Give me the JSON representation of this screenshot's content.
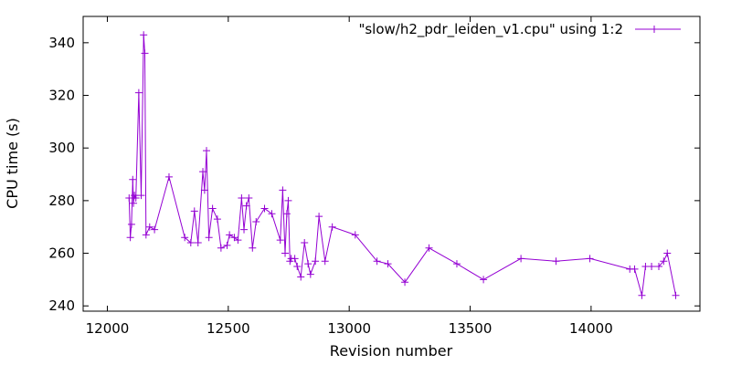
{
  "chart_data": {
    "type": "line",
    "title": "",
    "xlabel": "Revision number",
    "ylabel": "CPU time (s)",
    "xlim": [
      11900,
      14450
    ],
    "ylim": [
      238,
      350
    ],
    "xticks": [
      12000,
      12500,
      13000,
      13500,
      14000
    ],
    "yticks": [
      240,
      260,
      280,
      300,
      320,
      340
    ],
    "grid": false,
    "legend_position": "top-right",
    "series": [
      {
        "name": "\"slow/h2_pdr_leiden_v1.cpu\" using 1:2",
        "color": "#9400d3",
        "marker": "plus",
        "x": [
          12090,
          12095,
          12100,
          12105,
          12108,
          12112,
          12118,
          12130,
          12140,
          12150,
          12155,
          12160,
          12175,
          12195,
          12255,
          12320,
          12345,
          12360,
          12375,
          12395,
          12402,
          12410,
          12420,
          12435,
          12455,
          12470,
          12495,
          12505,
          12525,
          12540,
          12555,
          12565,
          12575,
          12585,
          12600,
          12615,
          12650,
          12680,
          12715,
          12725,
          12735,
          12742,
          12748,
          12755,
          12760,
          12775,
          12785,
          12800,
          12815,
          12830,
          12840,
          12860,
          12875,
          12900,
          12930,
          13025,
          13115,
          13160,
          13230,
          13330,
          13445,
          13555,
          13710,
          13855,
          13995,
          14160,
          14180,
          14210,
          14225,
          14250,
          14280,
          14300,
          14315,
          14350
        ],
        "y": [
          281,
          266,
          271,
          288,
          279,
          282,
          281,
          321,
          282,
          343,
          336,
          267,
          270,
          269,
          289,
          266,
          264,
          276,
          264,
          291,
          284,
          299,
          266,
          277,
          273,
          262,
          263,
          267,
          266,
          265,
          281,
          269,
          278,
          281,
          262,
          272,
          277,
          275,
          265,
          284,
          260,
          275,
          280,
          257,
          258,
          258,
          255,
          251,
          264,
          256,
          252,
          257,
          274,
          257,
          270,
          267,
          257,
          256,
          249,
          262,
          256,
          250,
          258,
          257,
          258,
          254,
          254,
          244,
          255,
          255,
          255,
          257,
          260,
          244
        ]
      }
    ]
  }
}
